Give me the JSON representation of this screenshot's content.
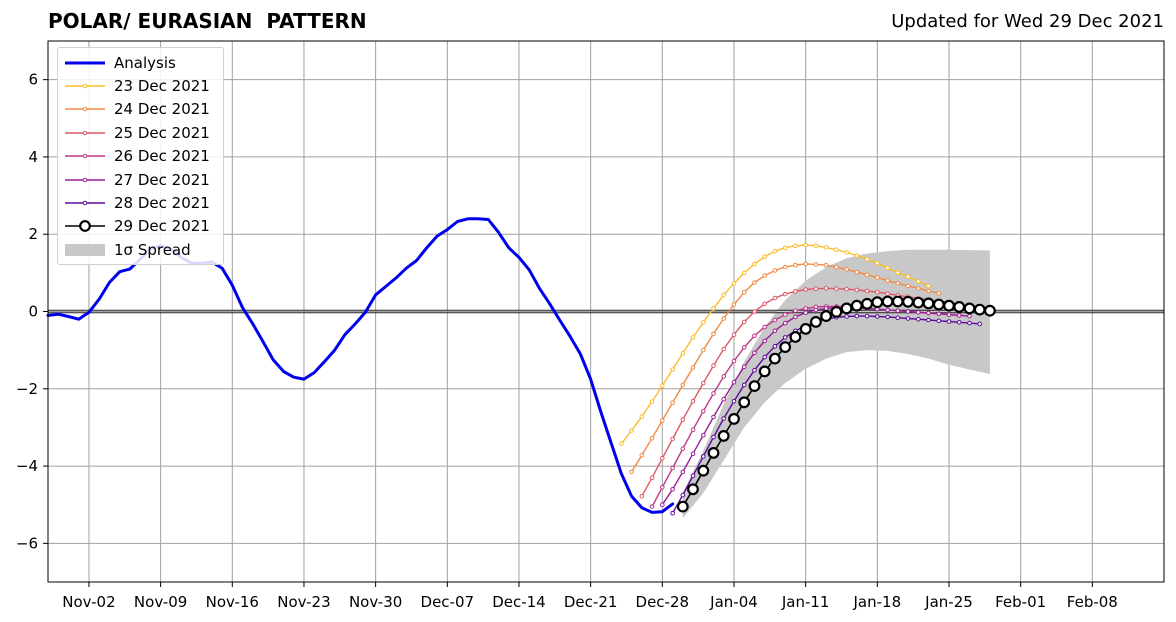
{
  "title": "POLAR/ EURASIAN  PATTERN",
  "subtitle": "Updated for Wed 29 Dec 2021",
  "colors": {
    "analysis": "#0000ee",
    "d23": "#fbbd2c",
    "d24": "#f08a43",
    "d25": "#dc5a66",
    "d26": "#bd3a86",
    "d27": "#9a1f98",
    "d28": "#5c0a9a",
    "d29": "#000000",
    "spread": "#c8c8c8"
  },
  "chart_data": {
    "type": "line",
    "x_axis": {
      "type": "date",
      "min": "2021-10-29",
      "max": "2022-02-15",
      "ticks": [
        {
          "date": "2021-11-02",
          "label": "Nov-02"
        },
        {
          "date": "2021-11-09",
          "label": "Nov-09"
        },
        {
          "date": "2021-11-16",
          "label": "Nov-16"
        },
        {
          "date": "2021-11-23",
          "label": "Nov-23"
        },
        {
          "date": "2021-11-30",
          "label": "Nov-30"
        },
        {
          "date": "2021-12-07",
          "label": "Dec-07"
        },
        {
          "date": "2021-12-14",
          "label": "Dec-14"
        },
        {
          "date": "2021-12-21",
          "label": "Dec-21"
        },
        {
          "date": "2021-12-28",
          "label": "Dec-28"
        },
        {
          "date": "2022-01-04",
          "label": "Jan-04"
        },
        {
          "date": "2022-01-11",
          "label": "Jan-11"
        },
        {
          "date": "2022-01-18",
          "label": "Jan-18"
        },
        {
          "date": "2022-01-25",
          "label": "Jan-25"
        },
        {
          "date": "2022-02-01",
          "label": "Feb-01"
        },
        {
          "date": "2022-02-08",
          "label": "Feb-08"
        }
      ]
    },
    "y_axis": {
      "min": -7,
      "max": 7,
      "ticks": [
        {
          "value": -6,
          "label": "−6"
        },
        {
          "value": -4,
          "label": "−4"
        },
        {
          "value": -2,
          "label": "−2"
        },
        {
          "value": 0,
          "label": "0"
        },
        {
          "value": 2,
          "label": "2"
        },
        {
          "value": 4,
          "label": "4"
        },
        {
          "value": 6,
          "label": "6"
        }
      ]
    },
    "grid": true,
    "zero_line": true,
    "legend_position": "top-left",
    "analysis": {
      "name": "Analysis",
      "dates": [
        "2021-10-29",
        "2021-10-30",
        "2021-10-31",
        "2021-11-01",
        "2021-11-02",
        "2021-11-03",
        "2021-11-04",
        "2021-11-05",
        "2021-11-06",
        "2021-11-07",
        "2021-11-08",
        "2021-11-09",
        "2021-11-10",
        "2021-11-11",
        "2021-11-12",
        "2021-11-13",
        "2021-11-14",
        "2021-11-15",
        "2021-11-16",
        "2021-11-17",
        "2021-11-18",
        "2021-11-19",
        "2021-11-20",
        "2021-11-21",
        "2021-11-22",
        "2021-11-23",
        "2021-11-24",
        "2021-11-25",
        "2021-11-26",
        "2021-11-27",
        "2021-11-28",
        "2021-11-29",
        "2021-11-30",
        "2021-12-01",
        "2021-12-02",
        "2021-12-03",
        "2021-12-04",
        "2021-12-05",
        "2021-12-06",
        "2021-12-07",
        "2021-12-08",
        "2021-12-09",
        "2021-12-10",
        "2021-12-11",
        "2021-12-12",
        "2021-12-13",
        "2021-12-14",
        "2021-12-15",
        "2021-12-16",
        "2021-12-17",
        "2021-12-18",
        "2021-12-19",
        "2021-12-20",
        "2021-12-21",
        "2021-12-22",
        "2021-12-23",
        "2021-12-24",
        "2021-12-25",
        "2021-12-26",
        "2021-12-27",
        "2021-12-28",
        "2021-12-29"
      ],
      "values": [
        -0.1,
        -0.07,
        -0.13,
        -0.2,
        -0.02,
        0.32,
        0.75,
        1.03,
        1.1,
        1.35,
        1.62,
        1.7,
        1.62,
        1.4,
        1.25,
        1.25,
        1.28,
        1.12,
        0.68,
        0.1,
        -0.32,
        -0.78,
        -1.25,
        -1.55,
        -1.7,
        -1.75,
        -1.58,
        -1.3,
        -1.0,
        -0.6,
        -0.32,
        -0.02,
        0.43,
        0.65,
        0.87,
        1.12,
        1.32,
        1.65,
        1.95,
        2.12,
        2.33,
        2.4,
        2.4,
        2.38,
        2.05,
        1.65,
        1.4,
        1.08,
        0.6,
        0.2,
        -0.23,
        -0.65,
        -1.1,
        -1.75,
        -2.6,
        -3.4,
        -4.2,
        -4.78,
        -5.08,
        -5.2,
        -5.18,
        -4.98
      ]
    },
    "forecasts": [
      {
        "name": "23 Dec 2021",
        "color_key": "d23",
        "dates": [
          "2021-12-24",
          "2021-12-25",
          "2021-12-26",
          "2021-12-27",
          "2021-12-28",
          "2021-12-29",
          "2021-12-30",
          "2021-12-31",
          "2022-01-01",
          "2022-01-02",
          "2022-01-03",
          "2022-01-04",
          "2022-01-05",
          "2022-01-06",
          "2022-01-07",
          "2022-01-08",
          "2022-01-09",
          "2022-01-10",
          "2022-01-11",
          "2022-01-12",
          "2022-01-13",
          "2022-01-14",
          "2022-01-15",
          "2022-01-16",
          "2022-01-17",
          "2022-01-18",
          "2022-01-19",
          "2022-01-20",
          "2022-01-21",
          "2022-01-22",
          "2022-01-23"
        ],
        "values": [
          -3.42,
          -3.08,
          -2.72,
          -2.33,
          -1.92,
          -1.5,
          -1.08,
          -0.67,
          -0.28,
          0.08,
          0.43,
          0.73,
          1.0,
          1.23,
          1.42,
          1.56,
          1.65,
          1.7,
          1.72,
          1.7,
          1.66,
          1.6,
          1.53,
          1.45,
          1.35,
          1.25,
          1.13,
          1.01,
          0.9,
          0.78,
          0.66
        ]
      },
      {
        "name": "24 Dec 2021",
        "color_key": "d24",
        "dates": [
          "2021-12-25",
          "2021-12-26",
          "2021-12-27",
          "2021-12-28",
          "2021-12-29",
          "2021-12-30",
          "2021-12-31",
          "2022-01-01",
          "2022-01-02",
          "2022-01-03",
          "2022-01-04",
          "2022-01-05",
          "2022-01-06",
          "2022-01-07",
          "2022-01-08",
          "2022-01-09",
          "2022-01-10",
          "2022-01-11",
          "2022-01-12",
          "2022-01-13",
          "2022-01-14",
          "2022-01-15",
          "2022-01-16",
          "2022-01-17",
          "2022-01-18",
          "2022-01-19",
          "2022-01-20",
          "2022-01-21",
          "2022-01-22",
          "2022-01-23",
          "2022-01-24"
        ],
        "values": [
          -4.15,
          -3.72,
          -3.28,
          -2.82,
          -2.36,
          -1.9,
          -1.45,
          -1.0,
          -0.58,
          -0.18,
          0.18,
          0.5,
          0.75,
          0.93,
          1.06,
          1.15,
          1.2,
          1.23,
          1.22,
          1.2,
          1.15,
          1.09,
          1.02,
          0.95,
          0.88,
          0.8,
          0.73,
          0.66,
          0.6,
          0.53,
          0.47
        ]
      },
      {
        "name": "25 Dec 2021",
        "color_key": "d25",
        "dates": [
          "2021-12-26",
          "2021-12-27",
          "2021-12-28",
          "2021-12-29",
          "2021-12-30",
          "2021-12-31",
          "2022-01-01",
          "2022-01-02",
          "2022-01-03",
          "2022-01-04",
          "2022-01-05",
          "2022-01-06",
          "2022-01-07",
          "2022-01-08",
          "2022-01-09",
          "2022-01-10",
          "2022-01-11",
          "2022-01-12",
          "2022-01-13",
          "2022-01-14",
          "2022-01-15",
          "2022-01-16",
          "2022-01-17",
          "2022-01-18",
          "2022-01-19",
          "2022-01-20",
          "2022-01-21",
          "2022-01-22",
          "2022-01-23",
          "2022-01-24",
          "2022-01-25"
        ],
        "values": [
          -4.78,
          -4.3,
          -3.8,
          -3.3,
          -2.8,
          -2.32,
          -1.85,
          -1.4,
          -0.97,
          -0.6,
          -0.27,
          0.0,
          0.2,
          0.35,
          0.45,
          0.52,
          0.57,
          0.59,
          0.6,
          0.59,
          0.58,
          0.56,
          0.53,
          0.5,
          0.46,
          0.42,
          0.38,
          0.34,
          0.3,
          0.27,
          0.24
        ]
      },
      {
        "name": "26 Dec 2021",
        "color_key": "d26",
        "dates": [
          "2021-12-27",
          "2021-12-28",
          "2021-12-29",
          "2021-12-30",
          "2021-12-31",
          "2022-01-01",
          "2022-01-02",
          "2022-01-03",
          "2022-01-04",
          "2022-01-05",
          "2022-01-06",
          "2022-01-07",
          "2022-01-08",
          "2022-01-09",
          "2022-01-10",
          "2022-01-11",
          "2022-01-12",
          "2022-01-13",
          "2022-01-14",
          "2022-01-15",
          "2022-01-16",
          "2022-01-17",
          "2022-01-18",
          "2022-01-19",
          "2022-01-20",
          "2022-01-21",
          "2022-01-22",
          "2022-01-23",
          "2022-01-24",
          "2022-01-25",
          "2022-01-26"
        ],
        "values": [
          -5.05,
          -4.55,
          -4.05,
          -3.55,
          -3.06,
          -2.58,
          -2.12,
          -1.68,
          -1.28,
          -0.93,
          -0.63,
          -0.4,
          -0.22,
          -0.08,
          0.02,
          0.08,
          0.12,
          0.13,
          0.13,
          0.12,
          0.1,
          0.08,
          0.06,
          0.04,
          0.02,
          0.0,
          -0.02,
          -0.04,
          -0.06,
          -0.08,
          -0.1
        ]
      },
      {
        "name": "27 Dec 2021",
        "color_key": "d27",
        "dates": [
          "2021-12-28",
          "2021-12-29",
          "2021-12-30",
          "2021-12-31",
          "2022-01-01",
          "2022-01-02",
          "2022-01-03",
          "2022-01-04",
          "2022-01-05",
          "2022-01-06",
          "2022-01-07",
          "2022-01-08",
          "2022-01-09",
          "2022-01-10",
          "2022-01-11",
          "2022-01-12",
          "2022-01-13",
          "2022-01-14",
          "2022-01-15",
          "2022-01-16",
          "2022-01-17",
          "2022-01-18",
          "2022-01-19",
          "2022-01-20",
          "2022-01-21",
          "2022-01-22",
          "2022-01-23",
          "2022-01-24",
          "2022-01-25",
          "2022-01-26",
          "2022-01-27"
        ],
        "values": [
          -5.0,
          -4.6,
          -4.15,
          -3.68,
          -3.2,
          -2.73,
          -2.27,
          -1.83,
          -1.43,
          -1.07,
          -0.76,
          -0.5,
          -0.3,
          -0.14,
          -0.03,
          0.04,
          0.08,
          0.1,
          0.1,
          0.09,
          0.08,
          0.06,
          0.04,
          0.02,
          0.0,
          -0.02,
          -0.04,
          -0.06,
          -0.08,
          -0.1,
          -0.12
        ]
      },
      {
        "name": "28 Dec 2021",
        "color_key": "d28",
        "dates": [
          "2021-12-29",
          "2021-12-30",
          "2021-12-31",
          "2022-01-01",
          "2022-01-02",
          "2022-01-03",
          "2022-01-04",
          "2022-01-05",
          "2022-01-06",
          "2022-01-07",
          "2022-01-08",
          "2022-01-09",
          "2022-01-10",
          "2022-01-11",
          "2022-01-12",
          "2022-01-13",
          "2022-01-14",
          "2022-01-15",
          "2022-01-16",
          "2022-01-17",
          "2022-01-18",
          "2022-01-19",
          "2022-01-20",
          "2022-01-21",
          "2022-01-22",
          "2022-01-23",
          "2022-01-24",
          "2022-01-25",
          "2022-01-26",
          "2022-01-27",
          "2022-01-28"
        ],
        "values": [
          -5.22,
          -4.75,
          -4.25,
          -3.75,
          -3.25,
          -2.77,
          -2.32,
          -1.9,
          -1.52,
          -1.18,
          -0.9,
          -0.67,
          -0.5,
          -0.37,
          -0.27,
          -0.2,
          -0.15,
          -0.13,
          -0.12,
          -0.12,
          -0.13,
          -0.14,
          -0.16,
          -0.18,
          -0.2,
          -0.22,
          -0.24,
          -0.26,
          -0.28,
          -0.3,
          -0.32
        ]
      },
      {
        "name": "29 Dec 2021",
        "color_key": "d29",
        "dates": [
          "2021-12-30",
          "2021-12-31",
          "2022-01-01",
          "2022-01-02",
          "2022-01-03",
          "2022-01-04",
          "2022-01-05",
          "2022-01-06",
          "2022-01-07",
          "2022-01-08",
          "2022-01-09",
          "2022-01-10",
          "2022-01-11",
          "2022-01-12",
          "2022-01-13",
          "2022-01-14",
          "2022-01-15",
          "2022-01-16",
          "2022-01-17",
          "2022-01-18",
          "2022-01-19",
          "2022-01-20",
          "2022-01-21",
          "2022-01-22",
          "2022-01-23",
          "2022-01-24",
          "2022-01-25",
          "2022-01-26",
          "2022-01-27",
          "2022-01-28",
          "2022-01-29"
        ],
        "values": [
          -5.05,
          -4.6,
          -4.12,
          -3.66,
          -3.22,
          -2.78,
          -2.35,
          -1.93,
          -1.55,
          -1.22,
          -0.92,
          -0.66,
          -0.45,
          -0.27,
          -0.12,
          -0.01,
          0.08,
          0.15,
          0.2,
          0.24,
          0.26,
          0.26,
          0.25,
          0.23,
          0.21,
          0.18,
          0.15,
          0.12,
          0.08,
          0.05,
          0.02
        ]
      }
    ],
    "spread": {
      "name": "1σ Spread",
      "dates": [
        "2021-12-30",
        "2022-01-01",
        "2022-01-03",
        "2022-01-05",
        "2022-01-07",
        "2022-01-09",
        "2022-01-11",
        "2022-01-13",
        "2022-01-15",
        "2022-01-17",
        "2022-01-19",
        "2022-01-21",
        "2022-01-23",
        "2022-01-25",
        "2022-01-27",
        "2022-01-29"
      ],
      "upper": [
        -4.7,
        -3.6,
        -2.4,
        -1.3,
        -0.4,
        0.3,
        0.8,
        1.15,
        1.38,
        1.5,
        1.56,
        1.6,
        1.6,
        1.6,
        1.59,
        1.58
      ],
      "lower": [
        -5.35,
        -4.7,
        -3.85,
        -3.0,
        -2.35,
        -1.85,
        -1.48,
        -1.22,
        -1.05,
        -1.0,
        -1.02,
        -1.1,
        -1.22,
        -1.38,
        -1.5,
        -1.62
      ]
    }
  },
  "legend": {
    "items": [
      {
        "label": "Analysis",
        "kind": "thick",
        "color_key": "analysis"
      },
      {
        "label": "23 Dec 2021",
        "kind": "thin",
        "color_key": "d23"
      },
      {
        "label": "24 Dec 2021",
        "kind": "thin",
        "color_key": "d24"
      },
      {
        "label": "25 Dec 2021",
        "kind": "thin",
        "color_key": "d25"
      },
      {
        "label": "26 Dec 2021",
        "kind": "thin",
        "color_key": "d26"
      },
      {
        "label": "27 Dec 2021",
        "kind": "thin",
        "color_key": "d27"
      },
      {
        "label": "28 Dec 2021",
        "kind": "thin",
        "color_key": "d28"
      },
      {
        "label": "29 Dec 2021",
        "kind": "big",
        "color_key": "d29"
      },
      {
        "label": "1σ Spread",
        "kind": "patch",
        "color_key": "spread"
      }
    ]
  }
}
